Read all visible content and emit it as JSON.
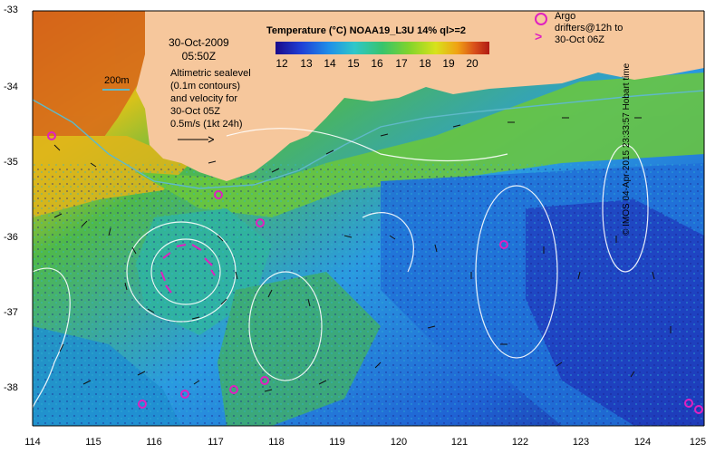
{
  "map": {
    "title": "Temperature (°C) NOAA19_L3U 14% ql>=2",
    "date_line1": "30-Oct-2009",
    "date_line2": "05:50Z",
    "isobath_label": "200m",
    "sealevel_note": [
      "Altimetric sealevel",
      "(0.1m contours)",
      "and velocity for",
      "30-Oct 05Z",
      "0.5m/s (1kt 24h)"
    ],
    "argo_note": [
      "Argo",
      "drifters@12h to",
      "30-Oct 06Z"
    ],
    "credit": "© IMOS 04-Apr-2015 23:33:57 Hobart time",
    "colorbar": {
      "ticks": [
        "12",
        "13",
        "14",
        "15",
        "16",
        "17",
        "18",
        "19",
        "20"
      ],
      "colors": [
        "#1a0a8a",
        "#1f3fd6",
        "#1f8fe8",
        "#2ec7c9",
        "#38c46c",
        "#7ed32d",
        "#d8e21b",
        "#f0a214",
        "#d9501a",
        "#b01a14"
      ]
    },
    "axes": {
      "x_ticks": [
        "114",
        "115",
        "116",
        "117",
        "118",
        "119",
        "120",
        "121",
        "122",
        "123",
        "124",
        "125"
      ],
      "y_ticks": [
        "-33",
        "-34",
        "-35",
        "-36",
        "-37",
        "-38"
      ]
    },
    "colors": {
      "land": "#f6c79c",
      "isobath": "#5fb9c9",
      "sealevel_contour": "#ffffff",
      "argo": "#e020c0"
    }
  }
}
